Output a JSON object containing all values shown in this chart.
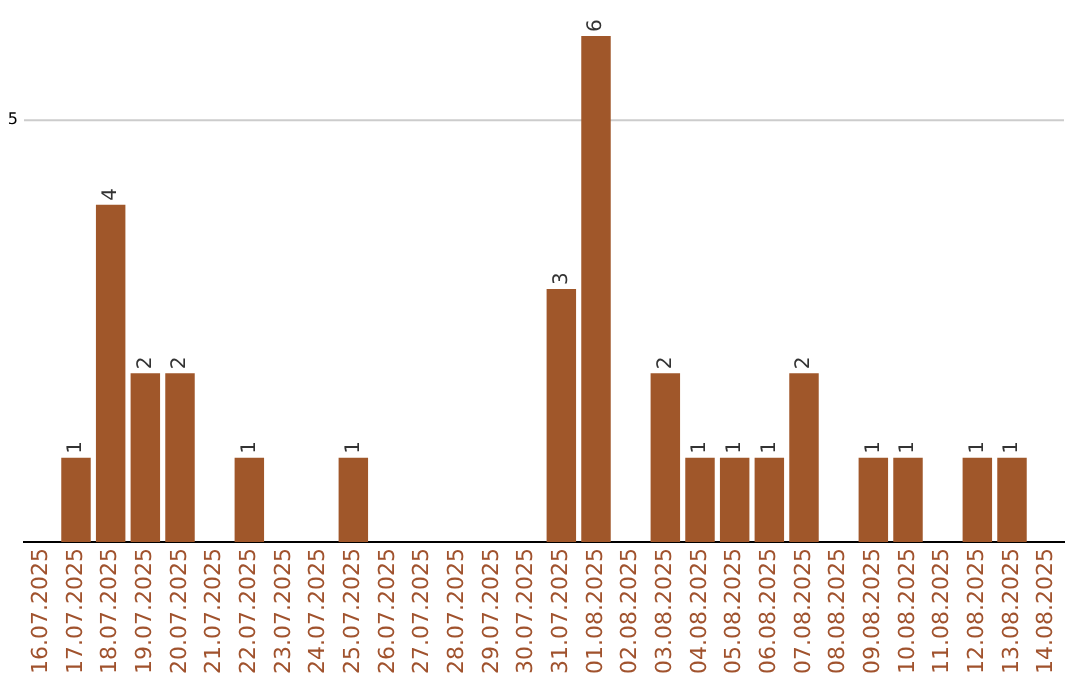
{
  "chart_data": {
    "type": "bar",
    "categories": [
      "16.07.2025",
      "17.07.2025",
      "18.07.2025",
      "19.07.2025",
      "20.07.2025",
      "21.07.2025",
      "22.07.2025",
      "23.07.2025",
      "24.07.2025",
      "25.07.2025",
      "26.07.2025",
      "27.07.2025",
      "28.07.2025",
      "29.07.2025",
      "30.07.2025",
      "31.07.2025",
      "01.08.2025",
      "02.08.2025",
      "03.08.2025",
      "04.08.2025",
      "05.08.2025",
      "06.08.2025",
      "07.08.2025",
      "08.08.2025",
      "09.08.2025",
      "10.08.2025",
      "11.08.2025",
      "12.08.2025",
      "13.08.2025",
      "14.08.2025"
    ],
    "values": [
      0,
      1,
      4,
      2,
      2,
      0,
      1,
      0,
      0,
      1,
      0,
      0,
      0,
      0,
      0,
      3,
      6,
      0,
      2,
      1,
      1,
      1,
      2,
      0,
      1,
      1,
      0,
      1,
      1,
      0
    ],
    "value_labels": [
      null,
      "1",
      "4",
      "2",
      "2",
      null,
      "1",
      null,
      null,
      "1",
      null,
      null,
      null,
      null,
      null,
      "3",
      "6",
      null,
      "2",
      "1",
      "1",
      "1",
      "2",
      null,
      "1",
      "1",
      null,
      "1",
      "1",
      null
    ],
    "color": "#a0572a",
    "ref_lines": [
      {
        "axis": "y",
        "value": 5,
        "label": "5",
        "color": "#cccccc"
      }
    ],
    "legend": false
  }
}
